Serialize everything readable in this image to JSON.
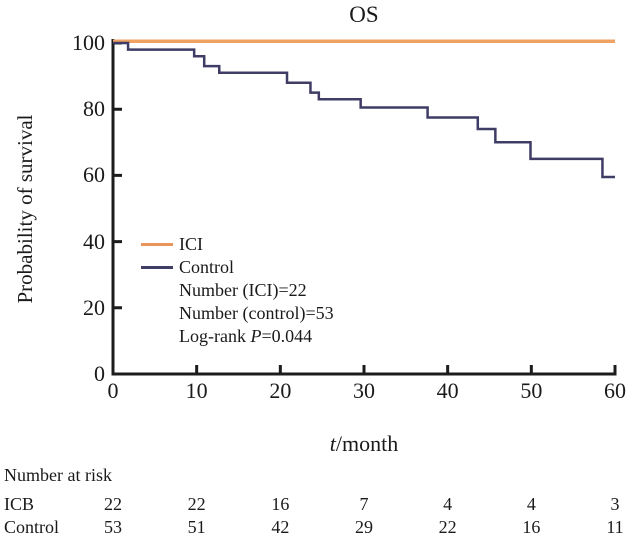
{
  "title": "OS",
  "y_axis": {
    "label": "Probability of survival"
  },
  "x_axis": {
    "label_italic": "t",
    "label_rest": "/month"
  },
  "legend": {
    "entries": [
      {
        "name": "ICI",
        "color": "#E8945A"
      },
      {
        "name": "Control",
        "color": "#3F3C66"
      }
    ],
    "stats": [
      {
        "text": "Number (ICI)=22"
      },
      {
        "text": "Number (control)=53"
      },
      {
        "prefix": "Log-rank ",
        "italic": "P",
        "suffix": "=0.044"
      }
    ]
  },
  "chart_data": {
    "type": "line",
    "subtype": "kaplan-meier-step",
    "title": "OS",
    "xlabel": "t/month",
    "ylabel": "Probability of survival",
    "xlim": [
      0,
      60
    ],
    "ylim": [
      0,
      100
    ],
    "x_ticks": [
      0,
      10,
      20,
      30,
      40,
      50,
      60
    ],
    "y_ticks": [
      0,
      20,
      40,
      60,
      80,
      100
    ],
    "grid": false,
    "legend_position": "inside-left-middle",
    "series": [
      {
        "name": "ICI",
        "color": "#F0A263",
        "points": [
          [
            0,
            100
          ],
          [
            60,
            100
          ]
        ]
      },
      {
        "name": "Control",
        "color": "#3F3C66",
        "points": [
          [
            0,
            100
          ],
          [
            1.8,
            98
          ],
          [
            9.7,
            96
          ],
          [
            10.9,
            93
          ],
          [
            12.7,
            91
          ],
          [
            20.8,
            88
          ],
          [
            23.6,
            85
          ],
          [
            24.6,
            83
          ],
          [
            29.6,
            80.5
          ],
          [
            37.6,
            77.5
          ],
          [
            43.6,
            74
          ],
          [
            45.7,
            70
          ],
          [
            49.9,
            65
          ],
          [
            58.5,
            59.5
          ],
          [
            60,
            59.5
          ]
        ]
      }
    ]
  },
  "risk_table": {
    "header": "Number at risk",
    "columns": [
      0,
      10,
      20,
      30,
      40,
      50,
      60
    ],
    "rows": [
      {
        "label": "ICB",
        "values": [
          "22",
          "22",
          "16",
          "7",
          "4",
          "4",
          "3"
        ]
      },
      {
        "label": "Control",
        "values": [
          "53",
          "51",
          "42",
          "29",
          "22",
          "16",
          "11"
        ]
      }
    ]
  }
}
